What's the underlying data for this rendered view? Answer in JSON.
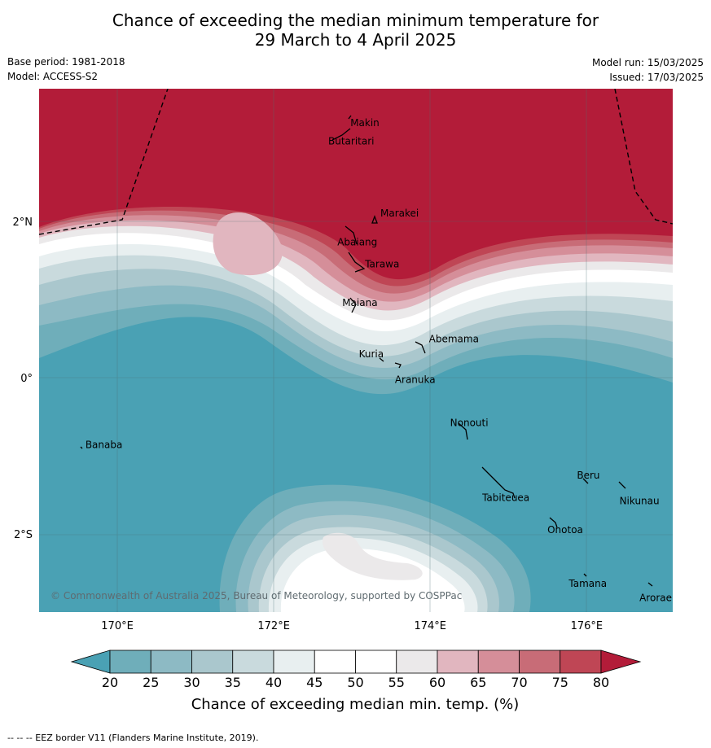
{
  "header": {
    "title_line1": "Chance of exceeding the median minimum temperature for",
    "title_line2": "29 March to 4 April 2025",
    "base_period": "Base period: 1981-2018",
    "model": "Model: ACCESS-S2",
    "model_run": "Model run: 15/03/2025",
    "issued": "Issued: 17/03/2025"
  },
  "map": {
    "lon_range": [
      169.0,
      177.1
    ],
    "lat_range": [
      -3.0,
      3.7
    ],
    "lon_ticks": [
      {
        "value": 170,
        "label": "170°E"
      },
      {
        "value": 172,
        "label": "172°E"
      },
      {
        "value": 174,
        "label": "174°E"
      },
      {
        "value": 176,
        "label": "176°E"
      }
    ],
    "lat_ticks": [
      {
        "value": 2,
        "label": "2°N"
      },
      {
        "value": 0,
        "label": "0°"
      },
      {
        "value": -2,
        "label": "2°S"
      }
    ],
    "copyright": "© Commonwealth of Australia 2025, Bureau of Meteorology, supported by COSPPac",
    "islands": [
      {
        "name": "Makin",
        "lon": 173.0,
        "lat": 3.2
      },
      {
        "name": "Butaritari",
        "lon": 172.8,
        "lat": 3.05
      },
      {
        "name": "Marakei",
        "lon": 173.3,
        "lat": 2.0
      },
      {
        "name": "Abaiang",
        "lon": 173.0,
        "lat": 1.8
      },
      {
        "name": "Tarawa",
        "lon": 173.0,
        "lat": 1.4
      },
      {
        "name": "Maiana",
        "lon": 173.0,
        "lat": 0.95
      },
      {
        "name": "Abemama",
        "lon": 173.9,
        "lat": 0.38
      },
      {
        "name": "Kuria",
        "lon": 173.4,
        "lat": 0.22
      },
      {
        "name": "Aranuka",
        "lon": 173.6,
        "lat": 0.15
      },
      {
        "name": "Nonouti",
        "lon": 174.4,
        "lat": -0.66
      },
      {
        "name": "Banaba",
        "lon": 169.55,
        "lat": -0.86
      },
      {
        "name": "Tabiteuea",
        "lon": 174.8,
        "lat": -1.35
      },
      {
        "name": "Beru",
        "lon": 176.0,
        "lat": -1.3
      },
      {
        "name": "Nikunau",
        "lon": 176.45,
        "lat": -1.35
      },
      {
        "name": "Onotoa",
        "lon": 175.55,
        "lat": -1.8
      },
      {
        "name": "Tamana",
        "lon": 175.98,
        "lat": -2.5
      },
      {
        "name": "Arorae",
        "lon": 176.82,
        "lat": -2.65
      }
    ]
  },
  "colorbar": {
    "levels": [
      20,
      25,
      30,
      35,
      40,
      45,
      50,
      55,
      60,
      65,
      70,
      75,
      80
    ],
    "tick_labels": [
      "20",
      "25",
      "30",
      "35",
      "40",
      "45",
      "50",
      "55",
      "60",
      "65",
      "70",
      "75",
      "80"
    ],
    "colors": [
      "#4aa1b4",
      "#6faeba",
      "#8dbac4",
      "#aac7cd",
      "#c9dadd",
      "#e8eff0",
      "#ffffff",
      "#ffffff",
      "#ebe9ea",
      "#e1b6bf",
      "#d58e99",
      "#c86c77",
      "#bf4655",
      "#b31c39"
    ],
    "label": "Chance of exceeding median min. temp. (%)"
  },
  "footer": "--  --  -- EEZ border V11 (Flanders Marine Institute, 2019)."
}
